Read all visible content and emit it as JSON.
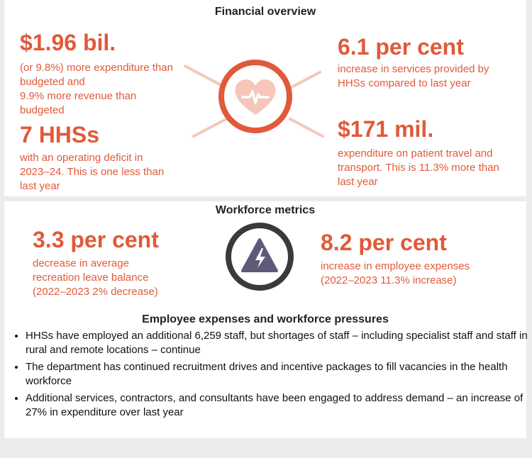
{
  "financial": {
    "title": "Financial overview",
    "stats": [
      {
        "value": "$1.96 bil.",
        "lines": [
          "(or 9.8%) more expenditure than",
          "budgeted and",
          "9.9% more revenue than",
          "budgeted"
        ]
      },
      {
        "value": "7 HHSs",
        "lines": [
          "with an operating deficit in",
          "2023–24. This is one less than",
          "last year"
        ]
      },
      {
        "value": "6.1 per cent",
        "lines": [
          "increase in services provided by",
          "HHSs compared to last year"
        ]
      },
      {
        "value": "$171 mil.",
        "lines": [
          "expenditure on patient travel and",
          "transport. This is 11.3% more than",
          "last year"
        ]
      }
    ],
    "icon": "heart-pulse-icon",
    "accent_color": "#e05a3a"
  },
  "workforce": {
    "title": "Workforce metrics",
    "stats": [
      {
        "value": "3.3 per cent",
        "lines": [
          "decrease in average",
          "recreation leave balance",
          "(2022–2023 2% decrease)"
        ]
      },
      {
        "value": "8.2 per cent",
        "lines": [
          "increase in employee expenses",
          "(2022–2023 11.3% increase)"
        ]
      }
    ],
    "icon": "lightning-warning-icon",
    "pressures": {
      "title": "Employee expenses and workforce pressures",
      "items": [
        "HHSs have employed an additional 6,259 staff, but shortages of staff – including specialist staff and staff in rural and remote locations – continue",
        "The department has continued recruitment drives and incentive packages to fill vacancies in the health workforce",
        "Additional services, contractors, and consultants have been engaged to address demand – an increase of 27% in expenditure over last year"
      ]
    }
  }
}
